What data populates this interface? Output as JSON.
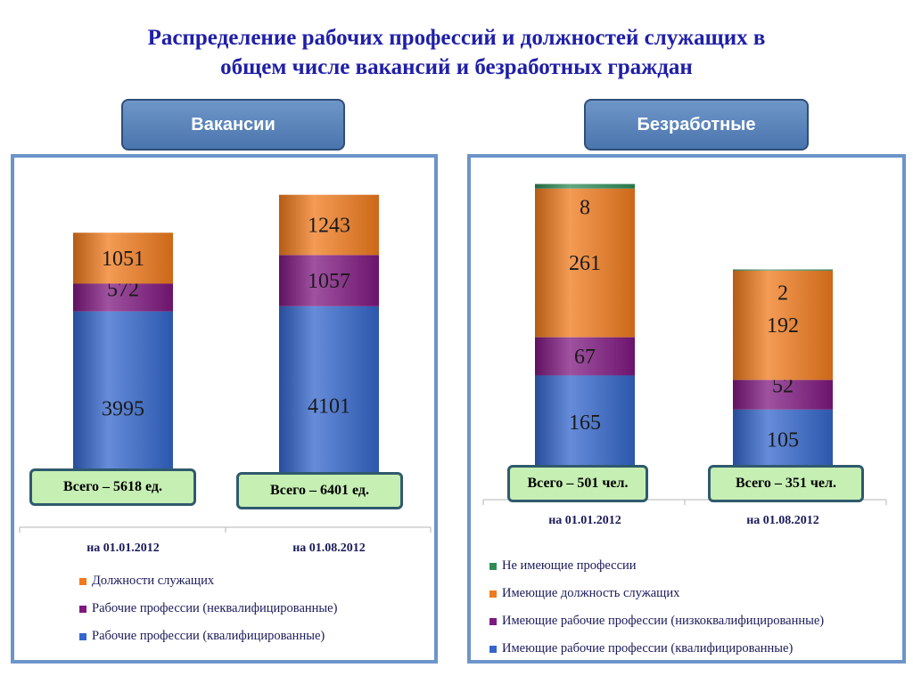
{
  "title_line1": "Распределение рабочих профессий и должностей служащих в",
  "title_line2": "общем числе вакансий и безработных граждан",
  "left": {
    "header": "Вакансии",
    "totals": [
      "Всего – 5618 ед.",
      "Всего – 6401 ед."
    ]
  },
  "right": {
    "header": "Безработные",
    "totals": [
      "Всего – 501 чел.",
      "Всего – 351 чел."
    ]
  },
  "chart_data": [
    {
      "type": "bar",
      "stacked": true,
      "title": "Вакансии",
      "categories": [
        "на 01.01.2012",
        "на 01.08.2012"
      ],
      "series": [
        {
          "name": "Рабочие профессии (квалифицированные)",
          "values": [
            3995,
            4101
          ],
          "color": "#3366cc"
        },
        {
          "name": "Рабочие профессии (неквалифицированные)",
          "values": [
            572,
            1057
          ],
          "color": "#7f1880"
        },
        {
          "name": "Должности служащих",
          "values": [
            1051,
            1243
          ],
          "color": "#f07a1c"
        }
      ],
      "ylim": [
        0,
        6800
      ],
      "grid": false,
      "legend": "bottom"
    },
    {
      "type": "bar",
      "stacked": true,
      "title": "Безработные",
      "categories": [
        "на 01.01.2012",
        "на 01.08.2012"
      ],
      "series": [
        {
          "name": "Имеющие рабочие профессии (квалифицированные)",
          "values": [
            165,
            105
          ],
          "color": "#3366cc"
        },
        {
          "name": "Имеющие рабочие профессии (низкоквалифицированные)",
          "values": [
            67,
            52
          ],
          "color": "#7f1880"
        },
        {
          "name": "Имеющие должность служащих",
          "values": [
            261,
            192
          ],
          "color": "#f07a1c"
        },
        {
          "name": "Не имеющие профессии",
          "values": [
            8,
            2
          ],
          "color": "#2e8b57"
        }
      ],
      "ylim": [
        0,
        516
      ],
      "grid": false,
      "legend": "bottom"
    }
  ]
}
